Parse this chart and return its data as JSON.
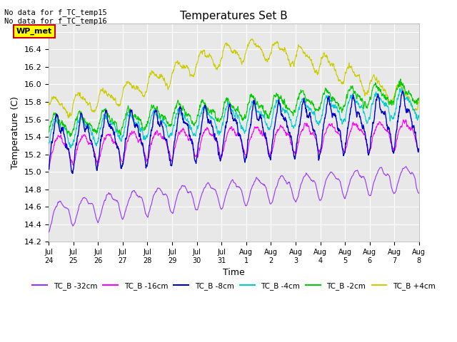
{
  "title": "Temperatures Set B",
  "xlabel": "Time",
  "ylabel": "Temperature (C)",
  "ylim": [
    14.2,
    16.7
  ],
  "bg_color": "#e8e8e8",
  "fig_color": "#ffffff",
  "series_colors": {
    "TC_B -32cm": "#9933ff",
    "TC_B -16cm": "#ff00ff",
    "TC_B -8cm": "#0000cc",
    "TC_B -4cm": "#00cccc",
    "TC_B -2cm": "#00cc00",
    "TC_B +4cm": "#cccc00"
  },
  "text_annotations": [
    "No data for f_TC_temp15",
    "No data for f_TC_temp16"
  ],
  "box_label": "WP_met",
  "box_color": "#ffff00",
  "box_border": "#cc0000",
  "num_points": 3600,
  "end_day": 15
}
